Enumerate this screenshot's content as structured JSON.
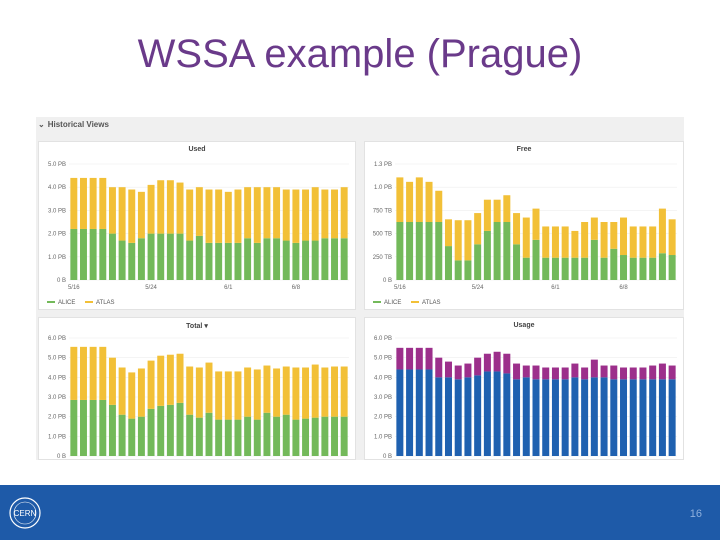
{
  "slide": {
    "title": "WSSA example (Prague)",
    "page_number": "16"
  },
  "dashboard": {
    "section_label": "Historical Views",
    "collapse_icon": "chevron-down-icon"
  },
  "colors": {
    "alice": "#73b95a",
    "atlas": "#f2c037",
    "purple": "#9c2f8b",
    "blue": "#1f61b0",
    "footer": "#1e5aa8",
    "title": "#6a3a8a"
  },
  "chart_data": [
    {
      "id": "used",
      "type": "bar",
      "stacked": true,
      "title": "Used",
      "y_ticks": [
        "0 B",
        "1.0 PB",
        "2.0 PB",
        "3.0 PB",
        "4.0 PB",
        "5.0 PB"
      ],
      "ylim": [
        0,
        5.0
      ],
      "x_ticks": [
        {
          "label": "5/16",
          "index": 0
        },
        {
          "label": "5/24",
          "index": 8
        },
        {
          "label": "6/1",
          "index": 16
        },
        {
          "label": "6/8",
          "index": 23
        }
      ],
      "legend": [
        "ALICE",
        "ATLAS"
      ],
      "series": [
        {
          "name": "ALICE",
          "color_key": "alice",
          "values": [
            2.2,
            2.2,
            2.2,
            2.2,
            2.0,
            1.7,
            1.6,
            1.8,
            2.0,
            2.0,
            2.0,
            2.0,
            1.7,
            1.9,
            1.6,
            1.6,
            1.6,
            1.6,
            1.8,
            1.6,
            1.8,
            1.8,
            1.7,
            1.6,
            1.7,
            1.7,
            1.8,
            1.8,
            1.8
          ]
        },
        {
          "name": "ATLAS",
          "color_key": "atlas",
          "values": [
            2.2,
            2.2,
            2.2,
            2.2,
            2.0,
            2.3,
            2.3,
            2.0,
            2.1,
            2.3,
            2.3,
            2.2,
            2.2,
            2.1,
            2.3,
            2.3,
            2.2,
            2.3,
            2.2,
            2.4,
            2.2,
            2.2,
            2.2,
            2.3,
            2.2,
            2.3,
            2.1,
            2.1,
            2.2
          ]
        }
      ]
    },
    {
      "id": "free",
      "type": "bar",
      "stacked": true,
      "title": "Free",
      "y_ticks": [
        "0 B",
        "250 TB",
        "500 TB",
        "750 TB",
        "1.0 PB",
        "1.3 PB"
      ],
      "ylim": [
        0,
        1.3
      ],
      "x_ticks": [
        {
          "label": "5/16",
          "index": 0
        },
        {
          "label": "5/24",
          "index": 8
        },
        {
          "label": "6/1",
          "index": 16
        },
        {
          "label": "6/8",
          "index": 23
        }
      ],
      "legend": [
        "ALICE",
        "ATLAS"
      ],
      "series": [
        {
          "name": "ALICE",
          "color_key": "alice",
          "values": [
            0.65,
            0.65,
            0.65,
            0.65,
            0.65,
            0.38,
            0.22,
            0.22,
            0.4,
            0.55,
            0.65,
            0.65,
            0.4,
            0.25,
            0.45,
            0.25,
            0.25,
            0.25,
            0.25,
            0.25,
            0.45,
            0.25,
            0.35,
            0.28,
            0.25,
            0.25,
            0.25,
            0.3,
            0.28
          ]
        },
        {
          "name": "ATLAS",
          "color_key": "atlas",
          "values": [
            0.5,
            0.45,
            0.5,
            0.45,
            0.35,
            0.3,
            0.45,
            0.45,
            0.35,
            0.35,
            0.25,
            0.3,
            0.35,
            0.45,
            0.35,
            0.35,
            0.35,
            0.35,
            0.3,
            0.4,
            0.25,
            0.4,
            0.3,
            0.42,
            0.35,
            0.35,
            0.35,
            0.5,
            0.4
          ]
        }
      ]
    },
    {
      "id": "total",
      "type": "bar",
      "stacked": true,
      "title": "Total",
      "title_dropdown": "▾",
      "y_ticks": [
        "0 B",
        "1.0 PB",
        "2.0 PB",
        "3.0 PB",
        "4.0 PB",
        "5.0 PB",
        "6.0 PB"
      ],
      "ylim": [
        0,
        6.0
      ],
      "series": [
        {
          "name": "ALICE",
          "color_key": "alice",
          "values": [
            2.85,
            2.85,
            2.85,
            2.85,
            2.6,
            2.1,
            1.9,
            2.0,
            2.4,
            2.55,
            2.6,
            2.7,
            2.1,
            1.95,
            2.2,
            1.85,
            1.85,
            1.85,
            2.0,
            1.85,
            2.2,
            2.0,
            2.1,
            1.85,
            1.9,
            1.95,
            2.0,
            2.0,
            2.0
          ]
        },
        {
          "name": "ATLAS",
          "color_key": "atlas",
          "values": [
            2.7,
            2.7,
            2.7,
            2.7,
            2.4,
            2.4,
            2.35,
            2.45,
            2.45,
            2.55,
            2.55,
            2.5,
            2.45,
            2.55,
            2.55,
            2.45,
            2.45,
            2.45,
            2.5,
            2.55,
            2.4,
            2.45,
            2.45,
            2.65,
            2.6,
            2.7,
            2.5,
            2.55,
            2.55
          ]
        }
      ]
    },
    {
      "id": "usage",
      "type": "bar",
      "stacked": true,
      "title": "Usage",
      "y_ticks": [
        "0 B",
        "1.0 PB",
        "2.0 PB",
        "3.0 PB",
        "4.0 PB",
        "5.0 PB",
        "6.0 PB"
      ],
      "ylim": [
        0,
        6.0
      ],
      "series": [
        {
          "name": "ALICE",
          "color_key": "blue",
          "values": [
            4.4,
            4.4,
            4.4,
            4.4,
            4.0,
            4.0,
            3.9,
            4.0,
            4.1,
            4.3,
            4.3,
            4.2,
            3.9,
            4.0,
            3.9,
            3.9,
            3.9,
            3.9,
            4.0,
            3.9,
            4.0,
            4.0,
            3.9,
            3.9,
            3.9,
            3.9,
            3.9,
            3.9,
            3.9
          ]
        },
        {
          "name": "ATLAS",
          "color_key": "purple",
          "values": [
            1.1,
            1.1,
            1.1,
            1.1,
            1.0,
            0.8,
            0.7,
            0.7,
            0.9,
            0.9,
            1.0,
            1.0,
            0.8,
            0.6,
            0.7,
            0.6,
            0.6,
            0.6,
            0.7,
            0.6,
            0.9,
            0.6,
            0.7,
            0.6,
            0.6,
            0.6,
            0.7,
            0.8,
            0.7
          ]
        }
      ]
    }
  ]
}
